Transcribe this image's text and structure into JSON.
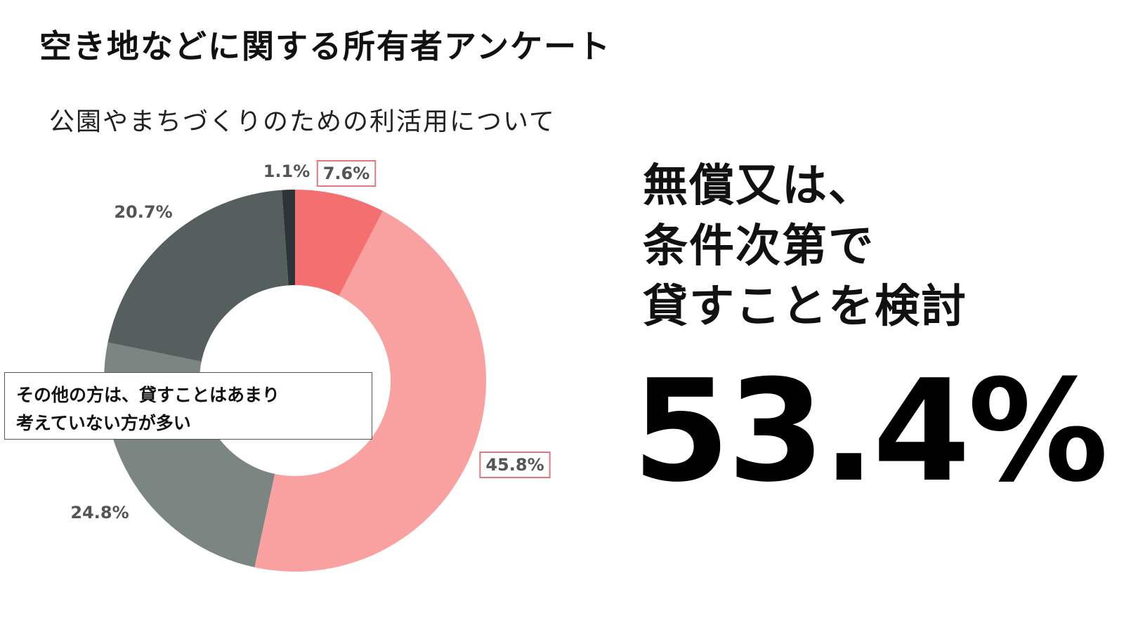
{
  "header": {
    "title": "空き地などに関する所有者アンケート",
    "subtitle": "公園やまちづくりのための利活用について"
  },
  "callout": {
    "line1": "その他の方は、貸すことはあまり",
    "line2": "考えていない方が多い"
  },
  "headline": {
    "line1": "無償又は、",
    "line2": "条件次第で",
    "line3": "貸すことを検討"
  },
  "big_percent": "53.4%",
  "chart_data": {
    "type": "pie",
    "donut": true,
    "slices": [
      {
        "label": "7.6%",
        "value": 7.6,
        "color": "#f47070",
        "highlighted": true
      },
      {
        "label": "45.8%",
        "value": 45.8,
        "color": "#f9a1a1",
        "highlighted": true
      },
      {
        "label": "24.8%",
        "value": 24.8,
        "color": "#7b8582",
        "highlighted": false
      },
      {
        "label": "20.7%",
        "value": 20.7,
        "color": "#555f5e",
        "highlighted": false
      },
      {
        "label": "1.1%",
        "value": 1.1,
        "color": "#2d3336",
        "highlighted": false
      }
    ],
    "highlight_color": "#e07a7a"
  }
}
